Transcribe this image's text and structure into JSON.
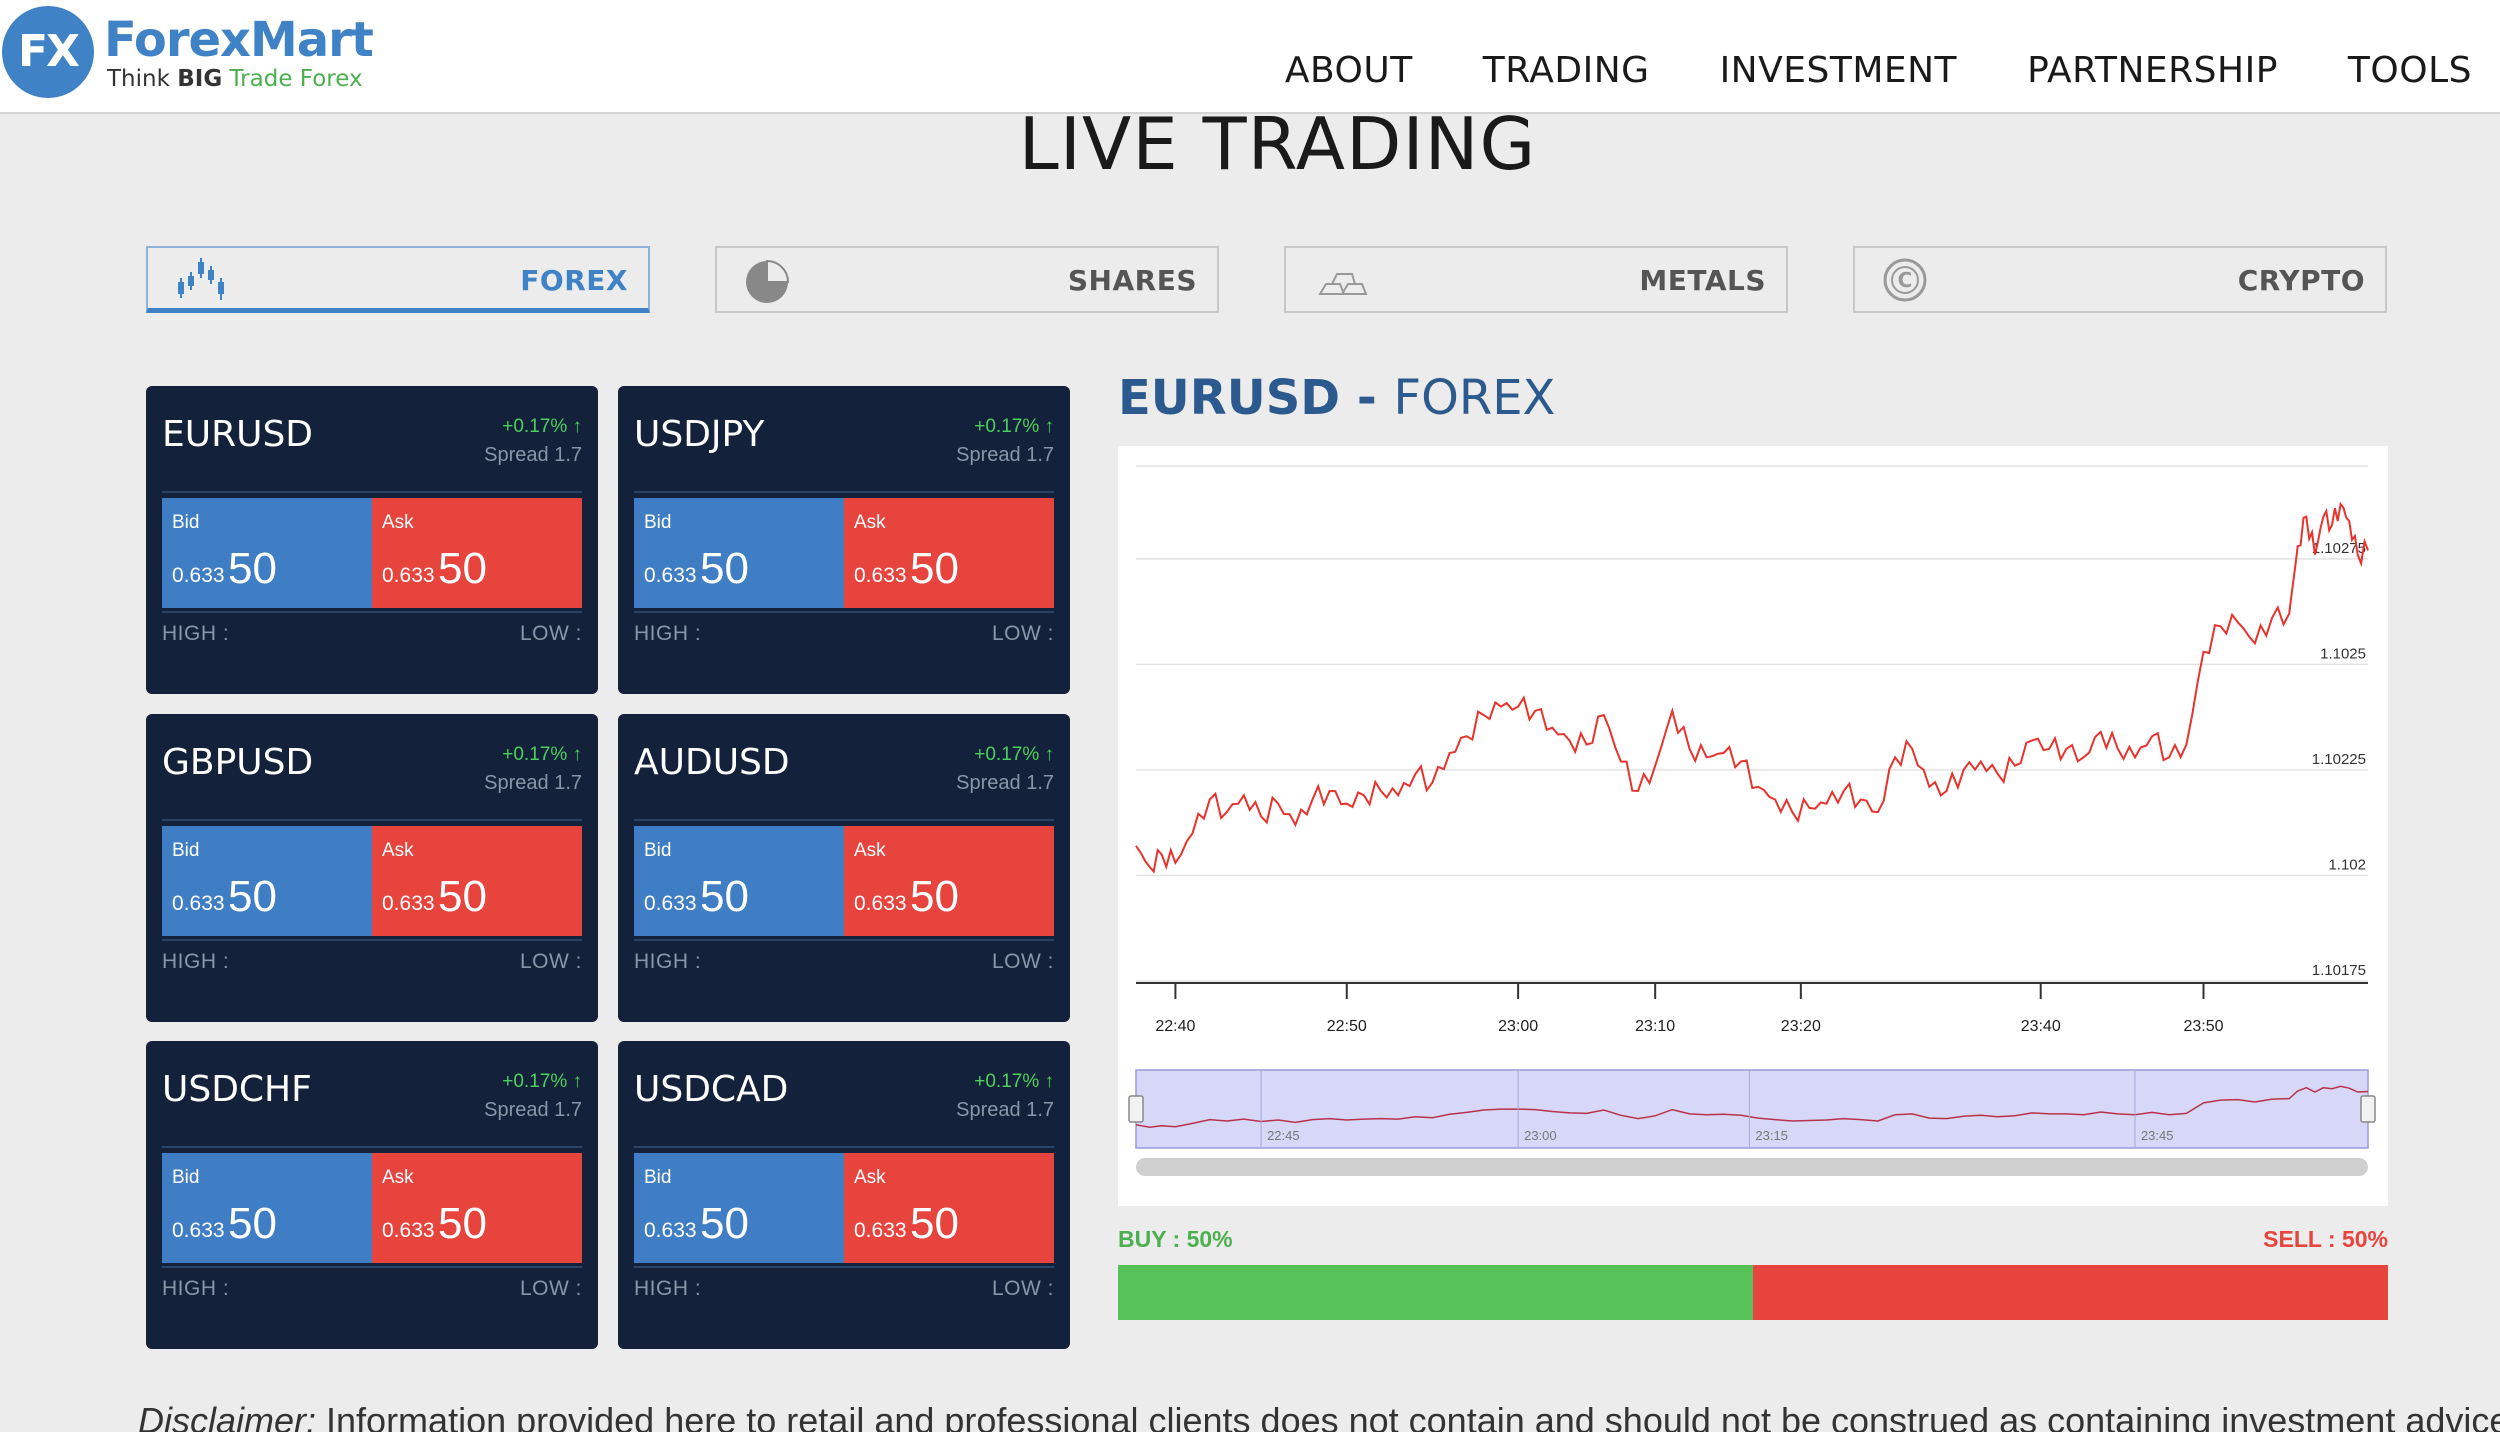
{
  "brand": {
    "logo_mark": "FX",
    "name": "ForexMart",
    "tagline_think": "Think",
    "tagline_big": "BIG",
    "tagline_trade": "Trade Forex",
    "color": "#3f83c6"
  },
  "nav": {
    "items": [
      "ABOUT",
      "TRADING",
      "INVESTMENT",
      "PARTNERSHIP",
      "TOOLS"
    ]
  },
  "page_title": "LIVE TRADING",
  "tabs": [
    {
      "label": "FOREX",
      "icon": "candlestick-icon",
      "active": true
    },
    {
      "label": "SHARES",
      "icon": "pie-chart-icon",
      "active": false
    },
    {
      "label": "METALS",
      "icon": "gold-bars-icon",
      "active": false
    },
    {
      "label": "CRYPTO",
      "icon": "crypto-coin-icon",
      "active": false
    }
  ],
  "cards": [
    {
      "pair": "EURUSD",
      "change": "+0.17% ↑",
      "spread": "Spread 1.7",
      "bid_label": "Bid",
      "bid_small": "0.633",
      "bid_big": "50",
      "ask_label": "Ask",
      "ask_small": "0.633",
      "ask_big": "50",
      "high": "HIGH :",
      "low": "LOW :"
    },
    {
      "pair": "USDJPY",
      "change": "+0.17% ↑",
      "spread": "Spread 1.7",
      "bid_label": "Bid",
      "bid_small": "0.633",
      "bid_big": "50",
      "ask_label": "Ask",
      "ask_small": "0.633",
      "ask_big": "50",
      "high": "HIGH :",
      "low": "LOW :"
    },
    {
      "pair": "GBPUSD",
      "change": "+0.17% ↑",
      "spread": "Spread 1.7",
      "bid_label": "Bid",
      "bid_small": "0.633",
      "bid_big": "50",
      "ask_label": "Ask",
      "ask_small": "0.633",
      "ask_big": "50",
      "high": "HIGH :",
      "low": "LOW :"
    },
    {
      "pair": "AUDUSD",
      "change": "+0.17% ↑",
      "spread": "Spread 1.7",
      "bid_label": "Bid",
      "bid_small": "0.633",
      "bid_big": "50",
      "ask_label": "Ask",
      "ask_small": "0.633",
      "ask_big": "50",
      "high": "HIGH :",
      "low": "LOW :"
    },
    {
      "pair": "USDCHF",
      "change": "+0.17% ↑",
      "spread": "Spread 1.7",
      "bid_label": "Bid",
      "bid_small": "0.633",
      "bid_big": "50",
      "ask_label": "Ask",
      "ask_small": "0.633",
      "ask_big": "50",
      "high": "HIGH :",
      "low": "LOW :"
    },
    {
      "pair": "USDCAD",
      "change": "+0.17% ↑",
      "spread": "Spread 1.7",
      "bid_label": "Bid",
      "bid_small": "0.633",
      "bid_big": "50",
      "ask_label": "Ask",
      "ask_small": "0.633",
      "ask_big": "50",
      "high": "HIGH :",
      "low": "LOW :"
    }
  ],
  "chart_header": {
    "pair": "EURUSD",
    "separator": " - ",
    "market": "FOREX"
  },
  "sentiment": {
    "buy_label": "BUY : 50%",
    "sell_label": "SELL : 50%",
    "buy_fraction": 0.5,
    "buy_color": "#56c258",
    "sell_color": "#e8443e"
  },
  "disclaimer": {
    "lead": "Disclaimer:",
    "text": " Information provided here to retail and professional clients does not contain and should not be construed as containing investment advice or an"
  },
  "chart_data": {
    "type": "line",
    "title": "",
    "xlabel": "",
    "ylabel": "",
    "color": "#e8332c",
    "x_ticks": [
      "22:40",
      "22:50",
      "23:00",
      "23:10",
      "23:20",
      "23:40",
      "23:50"
    ],
    "x_tick_minutes": [
      0,
      10,
      20,
      28,
      36.5,
      50.5,
      60
    ],
    "y_ticks": [
      1.10175,
      1.102,
      1.10225,
      1.1025,
      1.10275
    ],
    "y_tick_labels": [
      "1.10175",
      "1.102",
      "1.10225",
      "1.1025",
      "1.10275"
    ],
    "xlim_minutes": [
      -2.3,
      69.6
    ],
    "ylim": [
      1.10175,
      1.10297
    ],
    "grid": true,
    "series": [
      {
        "x_minutes": [
          -2.3,
          -1.5,
          -0.8,
          0,
          1,
          2,
          3,
          4,
          5,
          6,
          7,
          8,
          9,
          10,
          11,
          12,
          13,
          14,
          15,
          16,
          17,
          18,
          19,
          20,
          21,
          22,
          23,
          24,
          25,
          26,
          27,
          28,
          29,
          30,
          31,
          32,
          33,
          34,
          35,
          36,
          37,
          38,
          39,
          40,
          41,
          42,
          43,
          44,
          45,
          46,
          47,
          48,
          49,
          50,
          51,
          52,
          53,
          54,
          55,
          56,
          57,
          58,
          59,
          60,
          61,
          62,
          63,
          64,
          65,
          65.5,
          66,
          66.5,
          67,
          67.5,
          68,
          68.5,
          69,
          69.6
        ],
        "values": [
          1.10207,
          1.10202,
          1.10205,
          1.10203,
          1.1021,
          1.10218,
          1.10215,
          1.10219,
          1.10214,
          1.10217,
          1.10212,
          1.10218,
          1.1022,
          1.10217,
          1.10219,
          1.1022,
          1.10219,
          1.10224,
          1.10222,
          1.10229,
          1.10233,
          1.10238,
          1.1024,
          1.1024,
          1.10239,
          1.10235,
          1.10232,
          1.10231,
          1.10238,
          1.10227,
          1.1022,
          1.10226,
          1.10239,
          1.1023,
          1.10228,
          1.10229,
          1.10227,
          1.10221,
          1.10218,
          1.10215,
          1.10216,
          1.10217,
          1.1022,
          1.10218,
          1.10215,
          1.10228,
          1.1023,
          1.10221,
          1.1022,
          1.10225,
          1.10227,
          1.10224,
          1.10226,
          1.10232,
          1.1023,
          1.1023,
          1.10228,
          1.10234,
          1.1023,
          1.10228,
          1.10233,
          1.10228,
          1.10231,
          1.10253,
          1.10259,
          1.1026,
          1.10255,
          1.10261,
          1.10262,
          1.10278,
          1.10285,
          1.10276,
          1.10285,
          1.10283,
          1.10288,
          1.10284,
          1.10276,
          1.10277
        ]
      }
    ],
    "navigator": {
      "x_ticks": [
        "22:45",
        "23:00",
        "23:15",
        "23:45"
      ]
    }
  }
}
